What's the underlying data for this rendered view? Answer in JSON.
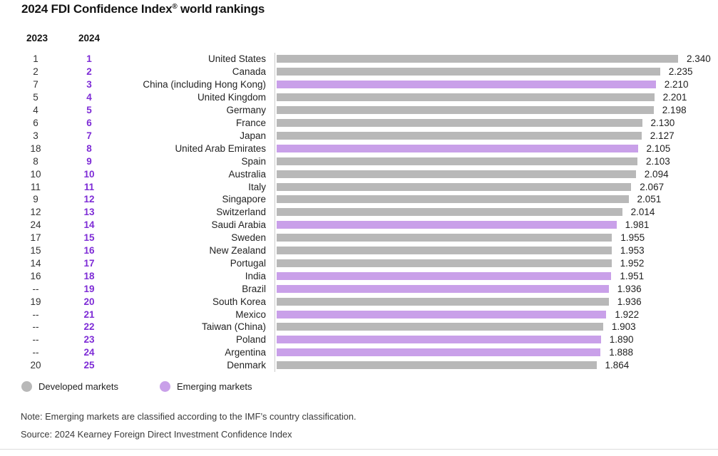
{
  "title": {
    "pre": "2024 FDI Confidence Index",
    "reg": "®",
    "post": " world rankings"
  },
  "columns": {
    "prev": "2023",
    "curr": "2024"
  },
  "colors": {
    "developed_bar": "#b8b8b8",
    "emerging_bar": "#c9a0e9",
    "rank_accent": "#7e2cd6",
    "axis_line": "#c9c9c9"
  },
  "legend": [
    {
      "label": "Developed markets",
      "market": "developed",
      "color": "#b8b8b8"
    },
    {
      "label": "Emerging markets",
      "market": "emerging",
      "color": "#c9a0e9"
    }
  ],
  "note": "Note: Emerging markets are classified according to the IMF’s country classification.",
  "source": "Source: 2024 Kearney Foreign Direct Investment Confidence Index",
  "chart_data": {
    "type": "bar",
    "orientation": "horizontal",
    "title": "2024 FDI Confidence Index® world rankings",
    "xlabel": "",
    "ylabel": "",
    "xlim": [
      0,
      2.34
    ],
    "grid": false,
    "legend_position": "bottom",
    "rows": [
      {
        "rank_2023": "1",
        "rank_2024": "1",
        "country": "United States",
        "value": "2.340",
        "market": "developed"
      },
      {
        "rank_2023": "2",
        "rank_2024": "2",
        "country": "Canada",
        "value": "2.235",
        "market": "developed"
      },
      {
        "rank_2023": "7",
        "rank_2024": "3",
        "country": "China (including Hong Kong)",
        "value": "2.210",
        "market": "emerging"
      },
      {
        "rank_2023": "5",
        "rank_2024": "4",
        "country": "United Kingdom",
        "value": "2.201",
        "market": "developed"
      },
      {
        "rank_2023": "4",
        "rank_2024": "5",
        "country": "Germany",
        "value": "2.198",
        "market": "developed"
      },
      {
        "rank_2023": "6",
        "rank_2024": "6",
        "country": "France",
        "value": "2.130",
        "market": "developed"
      },
      {
        "rank_2023": "3",
        "rank_2024": "7",
        "country": "Japan",
        "value": "2.127",
        "market": "developed"
      },
      {
        "rank_2023": "18",
        "rank_2024": "8",
        "country": "United Arab Emirates",
        "value": "2.105",
        "market": "emerging"
      },
      {
        "rank_2023": "8",
        "rank_2024": "9",
        "country": "Spain",
        "value": "2.103",
        "market": "developed"
      },
      {
        "rank_2023": "10",
        "rank_2024": "10",
        "country": "Australia",
        "value": "2.094",
        "market": "developed"
      },
      {
        "rank_2023": "11",
        "rank_2024": "11",
        "country": "Italy",
        "value": "2.067",
        "market": "developed"
      },
      {
        "rank_2023": "9",
        "rank_2024": "12",
        "country": "Singapore",
        "value": "2.051",
        "market": "developed"
      },
      {
        "rank_2023": "12",
        "rank_2024": "13",
        "country": "Switzerland",
        "value": "2.014",
        "market": "developed"
      },
      {
        "rank_2023": "24",
        "rank_2024": "14",
        "country": "Saudi Arabia",
        "value": "1.981",
        "market": "emerging"
      },
      {
        "rank_2023": "17",
        "rank_2024": "15",
        "country": "Sweden",
        "value": "1.955",
        "market": "developed"
      },
      {
        "rank_2023": "15",
        "rank_2024": "16",
        "country": "New Zealand",
        "value": "1.953",
        "market": "developed"
      },
      {
        "rank_2023": "14",
        "rank_2024": "17",
        "country": "Portugal",
        "value": "1.952",
        "market": "developed"
      },
      {
        "rank_2023": "16",
        "rank_2024": "18",
        "country": "India",
        "value": "1.951",
        "market": "emerging"
      },
      {
        "rank_2023": "--",
        "rank_2024": "19",
        "country": "Brazil",
        "value": "1.936",
        "market": "emerging"
      },
      {
        "rank_2023": "19",
        "rank_2024": "20",
        "country": "South Korea",
        "value": "1.936",
        "market": "developed"
      },
      {
        "rank_2023": "--",
        "rank_2024": "21",
        "country": "Mexico",
        "value": "1.922",
        "market": "emerging"
      },
      {
        "rank_2023": "--",
        "rank_2024": "22",
        "country": "Taiwan (China)",
        "value": "1.903",
        "market": "developed"
      },
      {
        "rank_2023": "--",
        "rank_2024": "23",
        "country": "Poland",
        "value": "1.890",
        "market": "emerging"
      },
      {
        "rank_2023": "--",
        "rank_2024": "24",
        "country": "Argentina",
        "value": "1.888",
        "market": "emerging"
      },
      {
        "rank_2023": "20",
        "rank_2024": "25",
        "country": "Denmark",
        "value": "1.864",
        "market": "developed"
      }
    ]
  }
}
